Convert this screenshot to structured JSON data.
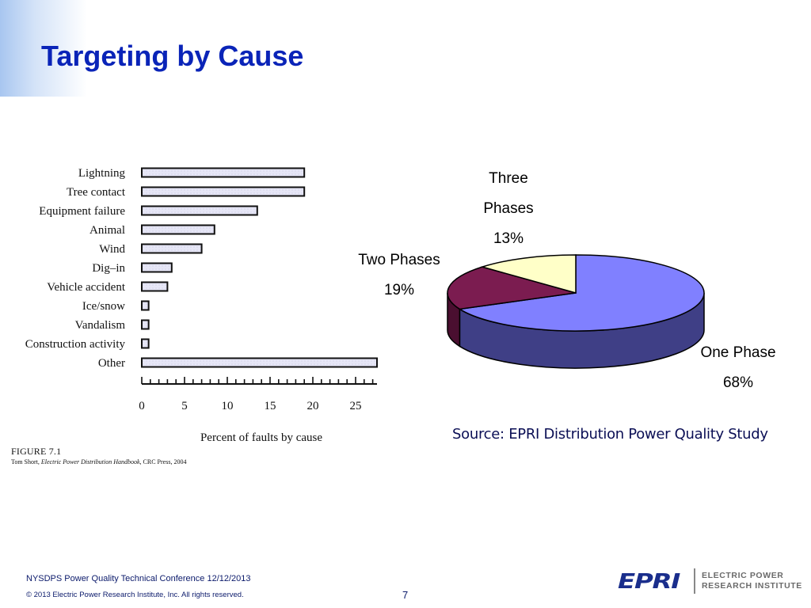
{
  "slide": {
    "title": "Targeting by Cause",
    "source_note": "Source: EPRI Distribution Power Quality Study",
    "figure_label": "FIGURE 7.1",
    "figure_credit_author": "Tom Short, ",
    "figure_credit_book": "Electric Power Distribution Handbook",
    "figure_credit_rest": ", CRC Press, 2004"
  },
  "footer": {
    "conference": "NYSDPS Power Quality Technical Conference  12/12/2013",
    "copyright": "© 2013 Electric Power Research Institute, Inc. All rights reserved.",
    "page_number": "7",
    "logo_mark": "EPRI",
    "logo_line1": "ELECTRIC POWER",
    "logo_line2": "RESEARCH INSTITUTE"
  },
  "colors": {
    "title": "#0a24b8",
    "bar_fill": "#dcdcf0",
    "pie_one_phase": "#8080ff",
    "pie_one_phase_side": "#3f3f86",
    "pie_two_phases": "#7b1c50",
    "pie_two_phases_side": "#4a0f30",
    "pie_three_phases": "#ffffc8",
    "pie_three_phases_side": "#bdbd90"
  },
  "pie_labels": {
    "three_line1": "Three",
    "three_line2": "Phases",
    "three_pct": "13%",
    "two_line1": "Two Phases",
    "two_pct": "19%",
    "one_line1": "One Phase",
    "one_pct": "68%"
  },
  "chart_data": [
    {
      "type": "bar",
      "orientation": "horizontal",
      "categories": [
        "Lightning",
        "Tree contact",
        "Equipment failure",
        "Animal",
        "Wind",
        "Dig–in",
        "Vehicle accident",
        "Ice/snow",
        "Vandalism",
        "Construction activity",
        "Other"
      ],
      "values": [
        19,
        19,
        13.5,
        8.5,
        7,
        3.5,
        3,
        0.8,
        0.8,
        0.8,
        27.5
      ],
      "xlabel": "Percent of faults by cause",
      "xlim": [
        0,
        27.5
      ],
      "xticks": [
        0,
        5,
        10,
        15,
        20,
        25
      ],
      "grid": false,
      "legend": "none"
    },
    {
      "type": "pie",
      "style": "3d",
      "categories": [
        "One Phase",
        "Two Phases",
        "Three Phases"
      ],
      "values": [
        68,
        19,
        13
      ],
      "legend": "none"
    }
  ]
}
